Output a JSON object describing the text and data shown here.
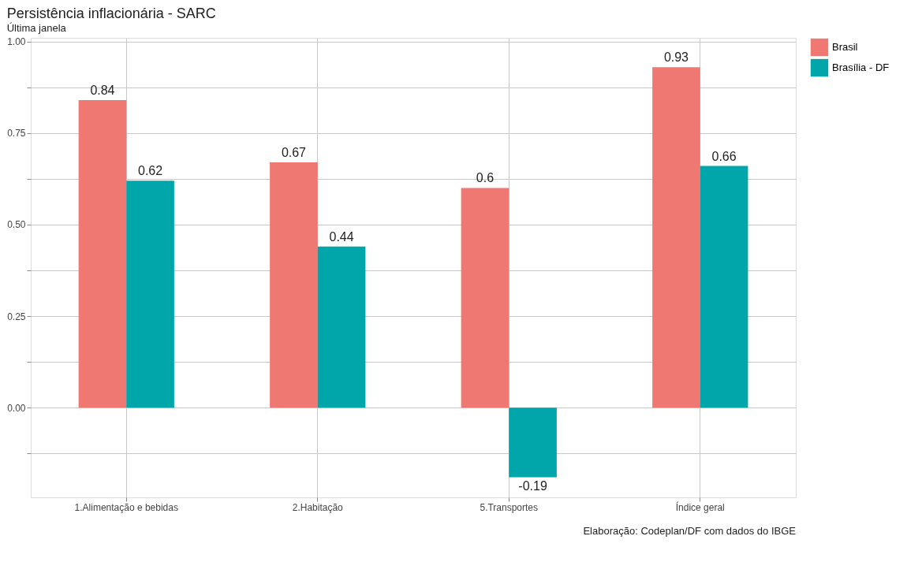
{
  "chart_data": {
    "type": "bar",
    "title": "Persistência inflacionária - SARC",
    "subtitle": "Última janela",
    "categories": [
      "1.Alimentação e bebidas",
      "2.Habitação",
      "5.Transportes",
      "Índice geral"
    ],
    "series": [
      {
        "name": "Brasil",
        "color": "#ef7872",
        "values": [
          0.84,
          0.67,
          0.6,
          0.93
        ]
      },
      {
        "name": "Brasília - DF",
        "color": "#00a6a9",
        "values": [
          0.62,
          0.44,
          -0.19,
          0.66
        ]
      }
    ],
    "ylim": [
      -0.245,
      1.01
    ],
    "yticks": [
      {
        "value": -0.125,
        "label": null
      },
      {
        "value": 0,
        "label": "0.00"
      },
      {
        "value": 0.125,
        "label": null
      },
      {
        "value": 0.25,
        "label": "0.25"
      },
      {
        "value": 0.375,
        "label": null
      },
      {
        "value": 0.5,
        "label": "0.50"
      },
      {
        "value": 0.625,
        "label": null
      },
      {
        "value": 0.75,
        "label": "0.75"
      },
      {
        "value": 0.875,
        "label": null
      },
      {
        "value": 1,
        "label": "1.00"
      }
    ],
    "data_labels": true,
    "grid": true,
    "legend": "right",
    "annotations": [
      "Elaboração: Codeplan/DF com dados do IBGE"
    ]
  }
}
